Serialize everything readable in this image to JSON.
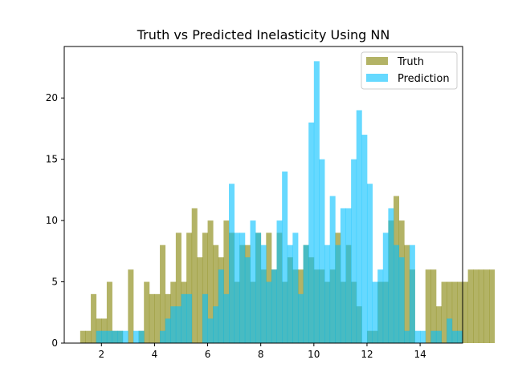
{
  "chart_data": {
    "type": "histogram",
    "title": "Truth vs Predicted Inelasticity Using NN",
    "xlabel": "",
    "ylabel": "",
    "xlim": [
      0.6,
      15.6
    ],
    "ylim": [
      0,
      24.2
    ],
    "xticks": [
      2,
      4,
      6,
      8,
      10,
      12,
      14
    ],
    "yticks": [
      0,
      5,
      10,
      15,
      20
    ],
    "grid": false,
    "legend_position": "top-right",
    "bin_start": 1.2,
    "bin_width": 0.2,
    "alpha": 0.6,
    "series": [
      {
        "name": "Truth",
        "color": "#808000",
        "values": [
          1,
          1,
          4,
          2,
          2,
          5,
          1,
          1,
          0,
          6,
          0,
          1,
          5,
          4,
          4,
          8,
          4,
          5,
          9,
          5,
          9,
          11,
          7,
          9,
          10,
          8,
          7,
          10,
          9,
          5,
          8,
          8,
          5,
          9,
          6,
          9,
          6,
          9,
          5,
          7,
          6,
          6,
          8,
          7,
          6,
          6,
          5,
          6,
          9,
          5,
          8,
          5,
          3,
          0,
          1,
          1,
          5,
          5,
          10,
          12,
          10,
          8,
          6,
          0,
          0,
          6,
          6,
          3,
          5,
          5,
          5,
          5,
          5,
          6,
          6,
          6,
          6,
          6
        ]
      },
      {
        "name": "Prediction",
        "color": "#00bfff",
        "values": [
          0,
          0,
          0,
          1,
          1,
          1,
          1,
          1,
          1,
          0,
          1,
          1,
          0,
          0,
          0,
          1,
          2,
          3,
          3,
          4,
          4,
          4,
          4,
          4,
          2,
          3,
          6,
          4,
          10,
          9,
          9,
          7,
          10,
          9,
          8,
          5,
          6,
          10,
          14,
          7,
          9,
          4,
          8,
          18,
          8,
          7,
          8,
          12,
          8,
          11,
          11,
          15,
          13,
          13,
          6,
          5,
          6,
          9,
          5,
          8,
          7,
          1,
          4,
          5,
          1,
          0,
          1,
          1,
          0,
          2,
          1,
          1,
          0,
          0,
          0,
          0,
          0,
          0
        ],
        "overrides": {
          "21": 0,
          "22": 0,
          "28": 13,
          "39": 8,
          "44": 23,
          "45": 15,
          "52": 19,
          "53": 17,
          "54": 13,
          "58": 11,
          "62": 8,
          "63": 1
        }
      }
    ]
  }
}
